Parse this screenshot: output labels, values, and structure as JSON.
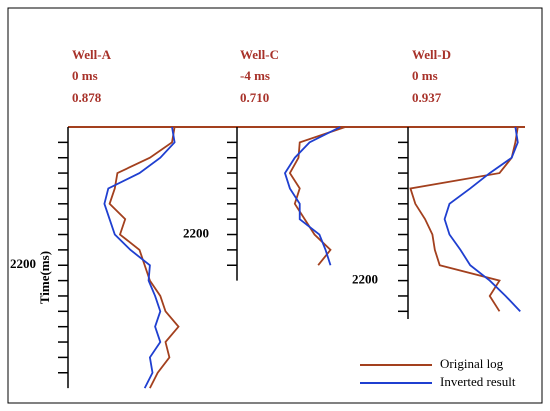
{
  "chart_data": [
    {
      "type": "line",
      "title": "Well-A",
      "annotations": [
        "0 ms",
        "0.878"
      ],
      "ylabel": "Time(ms)",
      "ylim": [
        2020,
        2360
      ],
      "xlim": [
        0,
        100
      ],
      "yticks": [
        {
          "value": 2040,
          "label": null
        },
        {
          "value": 2060,
          "label": null
        },
        {
          "value": 2080,
          "label": null
        },
        {
          "value": 2100,
          "label": null
        },
        {
          "value": 2120,
          "label": null
        },
        {
          "value": 2140,
          "label": null
        },
        {
          "value": 2160,
          "label": null
        },
        {
          "value": 2180,
          "label": null
        },
        2200,
        {
          "value": 2220,
          "label": null
        },
        {
          "value": 2240,
          "label": null
        },
        {
          "value": 2260,
          "label": null
        },
        {
          "value": 2280,
          "label": null
        },
        {
          "value": 2300,
          "label": null
        },
        {
          "value": 2320,
          "label": null
        },
        {
          "value": 2340,
          "label": null
        }
      ],
      "y": [
        2020,
        2040,
        2060,
        2080,
        2100,
        2120,
        2140,
        2160,
        2180,
        2200,
        2220,
        2240,
        2260,
        2280,
        2300,
        2320,
        2340,
        2360
      ],
      "series": [
        {
          "name": "Original log",
          "color": "#a3401e",
          "values": [
            82,
            80,
            63,
            38,
            36,
            32,
            44,
            40,
            55,
            59,
            63,
            71,
            75,
            85,
            75,
            78,
            69,
            63
          ]
        },
        {
          "name": "Inverted result",
          "color": "#1f3fd0",
          "values": [
            80,
            82,
            71,
            55,
            31,
            28,
            32,
            36,
            48,
            63,
            62,
            67,
            71,
            67,
            71,
            63,
            65,
            59
          ]
        }
      ]
    },
    {
      "type": "line",
      "title": "Well-C",
      "annotations": [
        "-4 ms",
        "0.710"
      ],
      "ylim": [
        2060,
        2260
      ],
      "xlim": [
        0,
        100
      ],
      "yticks": [
        {
          "value": 2080,
          "label": null
        },
        {
          "value": 2100,
          "label": null
        },
        {
          "value": 2120,
          "label": null
        },
        {
          "value": 2140,
          "label": null
        },
        {
          "value": 2160,
          "label": null
        },
        {
          "value": 2180,
          "label": null
        },
        2200,
        {
          "value": 2220,
          "label": null
        },
        {
          "value": 2240,
          "label": null
        }
      ],
      "y": [
        2060,
        2080,
        2100,
        2120,
        2140,
        2160,
        2180,
        2200,
        2220,
        2240
      ],
      "series": [
        {
          "color": "#a3401e",
          "values": [
            88,
            51,
            50,
            43,
            51,
            47,
            55,
            63,
            76,
            66
          ]
        },
        {
          "color": "#1f3fd0",
          "values": [
            84,
            59,
            47,
            39,
            43,
            51,
            51,
            67,
            72,
            76
          ]
        }
      ]
    },
    {
      "type": "line",
      "title": "Well-D",
      "annotations": [
        "0 ms",
        "0.937"
      ],
      "ylim": [
        2000,
        2250
      ],
      "xlim": [
        0,
        100
      ],
      "yticks": [
        {
          "value": 2020,
          "label": null
        },
        {
          "value": 2040,
          "label": null
        },
        {
          "value": 2060,
          "label": null
        },
        {
          "value": 2080,
          "label": null
        },
        {
          "value": 2100,
          "label": null
        },
        {
          "value": 2120,
          "label": null
        },
        {
          "value": 2140,
          "label": null
        },
        {
          "value": 2160,
          "label": null
        },
        {
          "value": 2180,
          "label": null
        },
        2200,
        {
          "value": 2220,
          "label": null
        },
        {
          "value": 2240,
          "label": null
        }
      ],
      "y": [
        2000,
        2020,
        2040,
        2060,
        2080,
        2100,
        2120,
        2140,
        2160,
        2180,
        2200,
        2220,
        2240
      ],
      "series": [
        {
          "color": "#a3401e",
          "values": [
            90,
            88,
            85,
            75,
            2,
            6,
            14,
            20,
            22,
            26,
            75,
            67,
            75
          ]
        },
        {
          "color": "#1f3fd0",
          "values": [
            88,
            90,
            85,
            67,
            51,
            34,
            30,
            34,
            43,
            51,
            67,
            80,
            92
          ]
        }
      ]
    }
  ]
}
